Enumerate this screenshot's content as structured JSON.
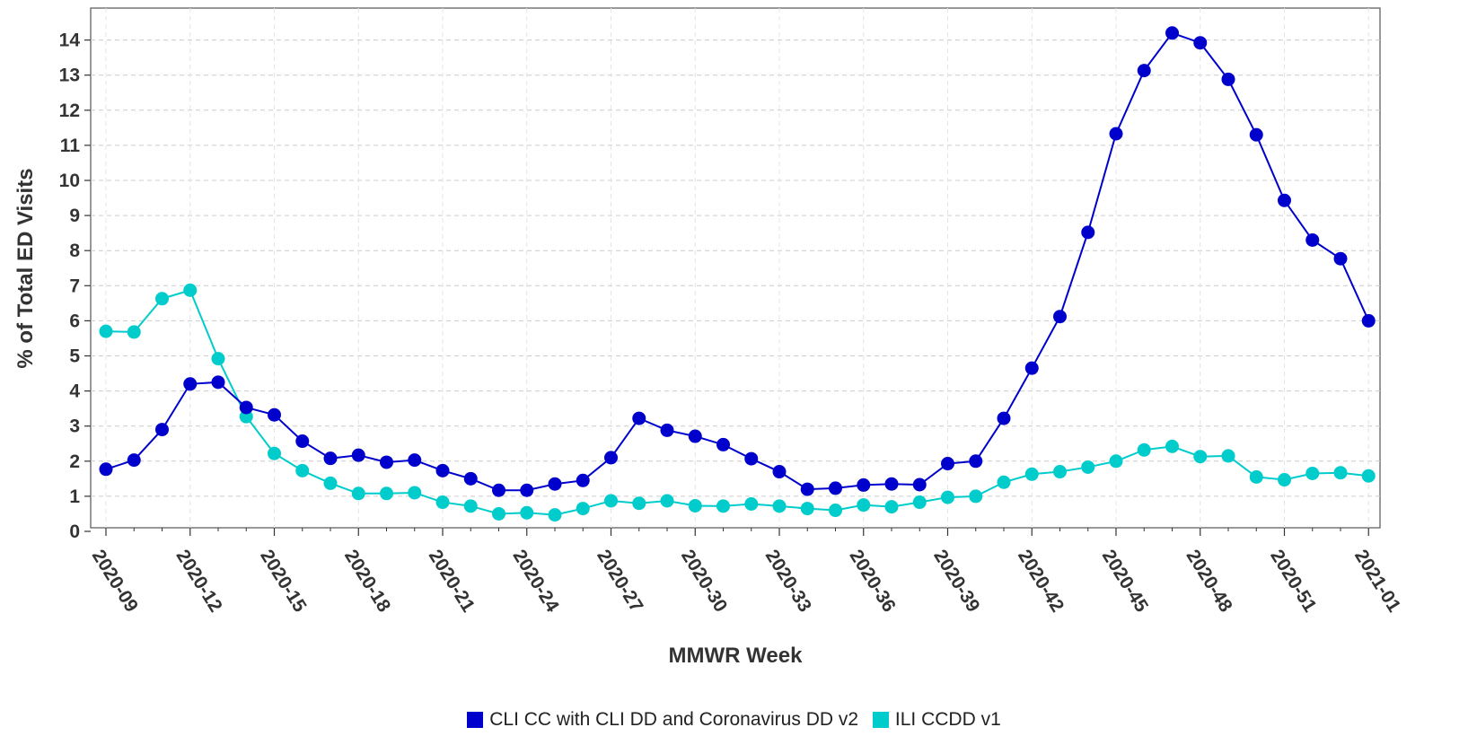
{
  "chart_data": {
    "type": "line",
    "xlabel": "MMWR Week",
    "ylabel": "% of Total ED Visits",
    "ylim": [
      0,
      14.8
    ],
    "yticks": [
      0,
      1,
      2,
      3,
      4,
      5,
      6,
      7,
      8,
      9,
      10,
      11,
      12,
      13,
      14
    ],
    "xtick_labels": [
      "2020-09",
      "2020-12",
      "2020-15",
      "2020-18",
      "2020-21",
      "2020-24",
      "2020-27",
      "2020-30",
      "2020-33",
      "2020-36",
      "2020-39",
      "2020-42",
      "2020-45",
      "2020-48",
      "2020-51",
      "2021-01"
    ],
    "x": [
      "2020-09",
      "2020-10",
      "2020-11",
      "2020-12",
      "2020-13",
      "2020-14",
      "2020-15",
      "2020-16",
      "2020-17",
      "2020-18",
      "2020-19",
      "2020-20",
      "2020-21",
      "2020-22",
      "2020-23",
      "2020-24",
      "2020-25",
      "2020-26",
      "2020-27",
      "2020-28",
      "2020-29",
      "2020-30",
      "2020-31",
      "2020-32",
      "2020-33",
      "2020-34",
      "2020-35",
      "2020-36",
      "2020-37",
      "2020-38",
      "2020-39",
      "2020-40",
      "2020-41",
      "2020-42",
      "2020-43",
      "2020-44",
      "2020-45",
      "2020-46",
      "2020-47",
      "2020-48",
      "2020-49",
      "2020-50",
      "2020-51",
      "2020-52",
      "2020-53",
      "2021-01"
    ],
    "grid": true,
    "legend_position": "bottom",
    "series": [
      {
        "name": "CLI CC with CLI DD and Coronavirus DD v2",
        "color": "#0000cc",
        "values": [
          1.77,
          2.03,
          2.9,
          4.2,
          4.25,
          3.53,
          3.32,
          2.57,
          2.08,
          2.17,
          1.97,
          2.03,
          1.73,
          1.5,
          1.17,
          1.17,
          1.35,
          1.45,
          2.1,
          3.22,
          2.88,
          2.71,
          2.47,
          2.07,
          1.7,
          1.2,
          1.23,
          1.32,
          1.35,
          1.33,
          1.93,
          2.0,
          3.22,
          4.65,
          6.12,
          8.52,
          11.33,
          13.13,
          14.2,
          13.92,
          12.88,
          11.3,
          9.43,
          8.3,
          7.77,
          6.0
        ]
      },
      {
        "name": "ILI CCDD v1",
        "color": "#00cccc",
        "values": [
          5.7,
          5.68,
          6.63,
          6.87,
          4.92,
          3.27,
          2.22,
          1.73,
          1.37,
          1.08,
          1.08,
          1.1,
          0.83,
          0.72,
          0.5,
          0.53,
          0.47,
          0.65,
          0.87,
          0.8,
          0.87,
          0.73,
          0.72,
          0.78,
          0.72,
          0.65,
          0.6,
          0.75,
          0.7,
          0.83,
          0.97,
          1.0,
          1.4,
          1.63,
          1.7,
          1.83,
          2.0,
          2.32,
          2.42,
          2.13,
          2.15,
          1.55,
          1.47,
          1.65,
          1.67,
          1.58
        ]
      }
    ]
  }
}
